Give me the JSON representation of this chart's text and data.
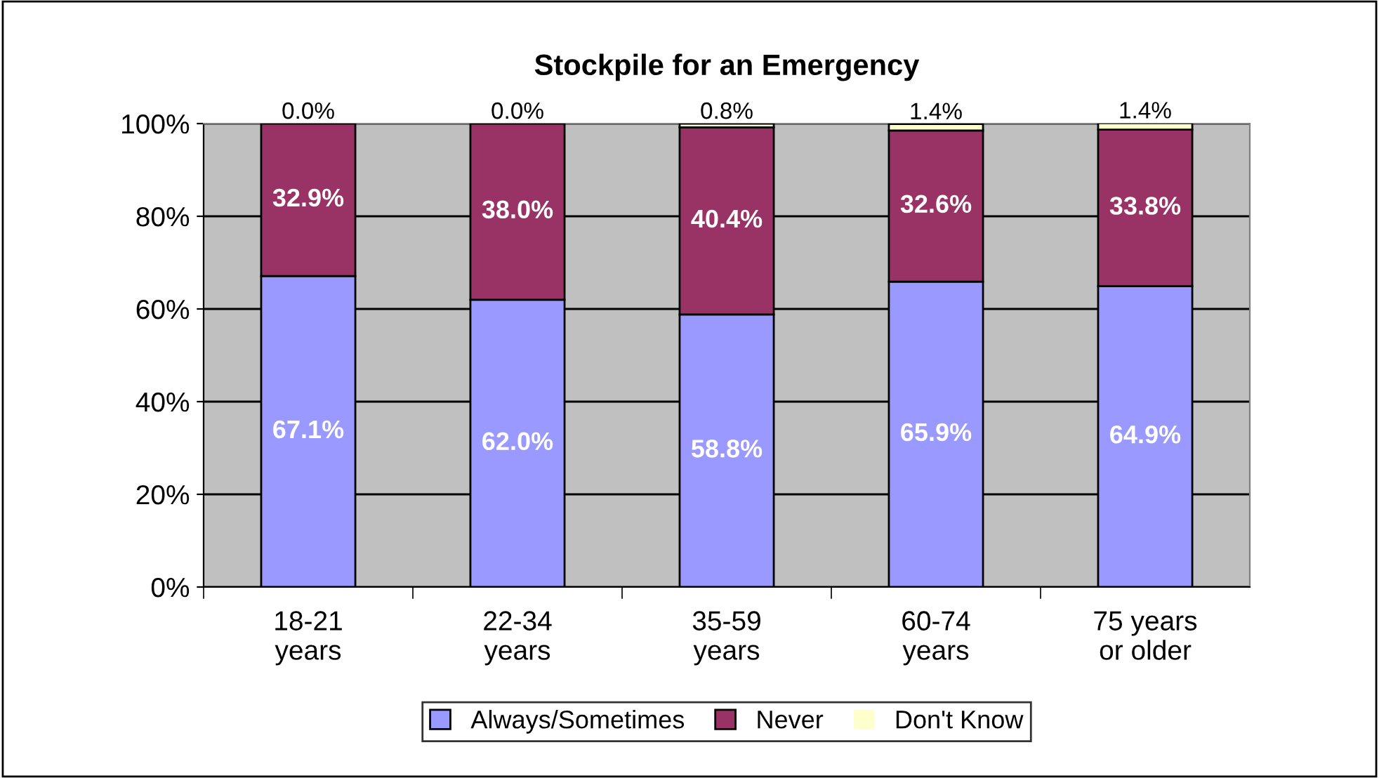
{
  "chart_data": {
    "type": "bar",
    "title": "Stockpile for an Emergency",
    "stacked": true,
    "categories": [
      "18-21\nyears",
      "22-34\nyears",
      "35-59\nyears",
      "60-74\nyears",
      "75 years\nor older"
    ],
    "series": [
      {
        "name": "Always/Sometimes",
        "color": "#9999ff",
        "values": [
          67.1,
          62.0,
          58.8,
          65.9,
          64.9
        ],
        "value_labels": [
          "67.1%",
          "62.0%",
          "58.8%",
          "65.9%",
          "64.9%"
        ]
      },
      {
        "name": "Never",
        "color": "#993366",
        "values": [
          32.9,
          38.0,
          40.4,
          32.6,
          33.8
        ],
        "value_labels": [
          "32.9%",
          "38.0%",
          "40.4%",
          "32.6%",
          "33.8%"
        ]
      },
      {
        "name": "Don't Know",
        "color": "#ffffcc",
        "values": [
          0.0,
          0.0,
          0.8,
          1.4,
          1.4
        ],
        "value_labels": [
          "0.0%",
          "0.0%",
          "0.8%",
          "1.4%",
          "1.4%"
        ]
      }
    ],
    "ylim": [
      0,
      100
    ],
    "yticks": [
      {
        "value": 0,
        "label": "0%"
      },
      {
        "value": 20,
        "label": "20%"
      },
      {
        "value": 40,
        "label": "40%"
      },
      {
        "value": 60,
        "label": "60%"
      },
      {
        "value": 80,
        "label": "80%"
      },
      {
        "value": 100,
        "label": "100%"
      }
    ],
    "grid": "y",
    "legend": "bottom"
  }
}
